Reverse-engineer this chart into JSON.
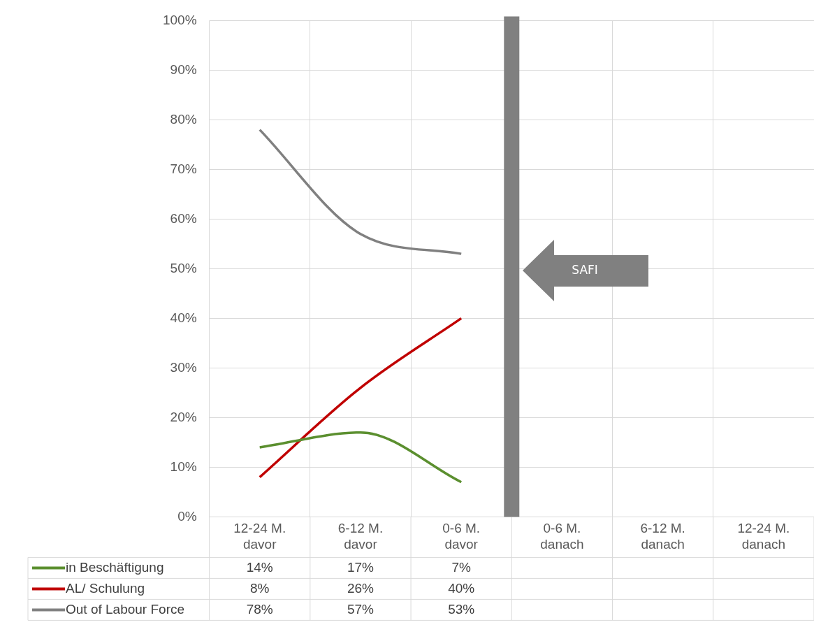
{
  "chart_data": {
    "type": "line",
    "categories": [
      "12-24 M. davor",
      "6-12 M. davor",
      "0-6 M. davor",
      "0-6 M. danach",
      "6-12 M. danach",
      "12-24 M. danach"
    ],
    "series": [
      {
        "name": "in Beschäftigung",
        "color": "#5b8f2f",
        "values": [
          14,
          17,
          7,
          null,
          null,
          null
        ],
        "value_labels": [
          "14%",
          "17%",
          "7%",
          null,
          null,
          null
        ]
      },
      {
        "name": "AL/ Schulung",
        "color": "#c00000",
        "values": [
          8,
          26,
          40,
          null,
          null,
          null
        ],
        "value_labels": [
          "8%",
          "26%",
          "40%",
          null,
          null,
          null
        ]
      },
      {
        "name": "Out of Labour Force",
        "color": "#808080",
        "values": [
          78,
          57,
          53,
          null,
          null,
          null
        ],
        "value_labels": [
          "78%",
          "57%",
          "53%",
          null,
          null,
          null
        ]
      }
    ],
    "ylim": [
      0,
      100
    ],
    "yticks": [
      {
        "value": 0,
        "label": "0%"
      },
      {
        "value": 10,
        "label": "10%"
      },
      {
        "value": 20,
        "label": "20%"
      },
      {
        "value": 30,
        "label": "30%"
      },
      {
        "value": 40,
        "label": "40%"
      },
      {
        "value": 50,
        "label": "50%"
      },
      {
        "value": 60,
        "label": "60%"
      },
      {
        "value": 70,
        "label": "70%"
      },
      {
        "value": 80,
        "label": "80%"
      },
      {
        "value": 90,
        "label": "90%"
      },
      {
        "value": 100,
        "label": "100%"
      }
    ],
    "grid": true,
    "legend": "bottom",
    "marker": "none",
    "ref_lines": [
      {
        "axis": "x",
        "value": "0-6 M. danach",
        "color": "#808080"
      }
    ],
    "annotations": [
      "SAFI"
    ]
  }
}
